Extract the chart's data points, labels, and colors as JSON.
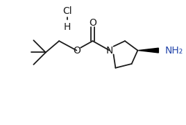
{
  "background_color": "#ffffff",
  "line_color": "#1a1a1a",
  "atom_colors": {
    "O": "#1a1a1a",
    "N": "#1a1a1a",
    "Cl": "#1a1a1a",
    "H": "#1a1a1a",
    "NH2": "#2244aa"
  },
  "font_size": 9,
  "lw": 1.3
}
